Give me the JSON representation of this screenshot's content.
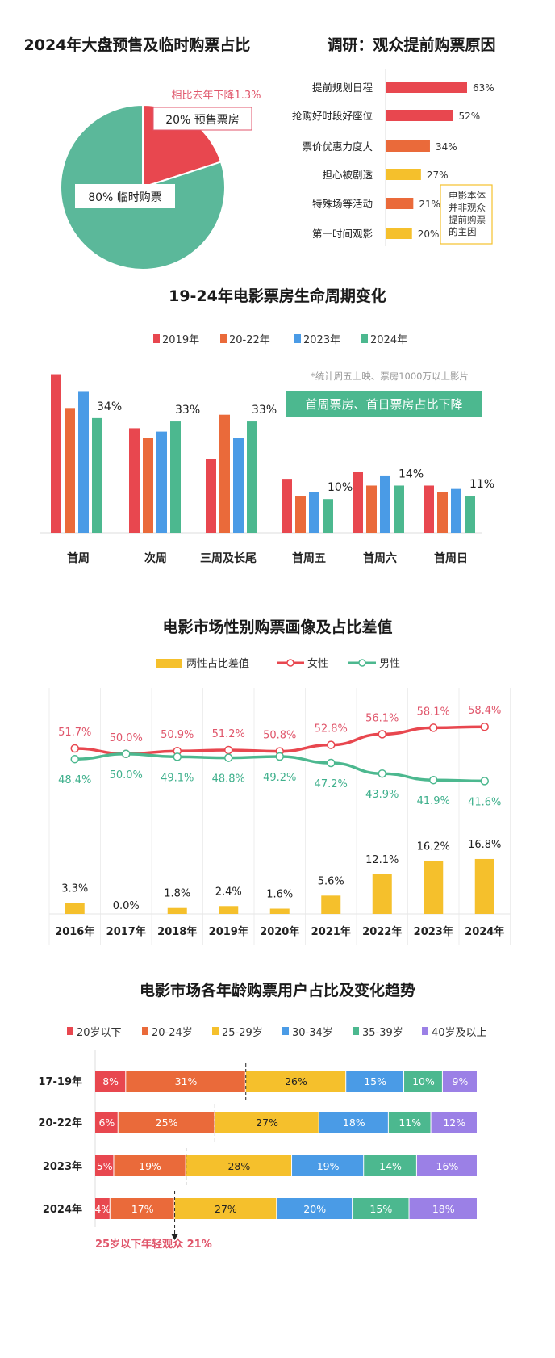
{
  "colors": {
    "red": "#e8474f",
    "orange": "#ea6a3a",
    "yellow": "#f5c02c",
    "blue": "#4a9be6",
    "green": "#4cb88f",
    "purple": "#9b80e6",
    "pink_text": "#e0566b",
    "pie_green": "#5bb89a"
  },
  "chart_data": [
    {
      "type": "pie",
      "title": "2024年大盘预售及临时购票占比",
      "slices": [
        {
          "label": "20% 预售票房",
          "value": 20,
          "color": "#e8474f"
        },
        {
          "label": "80% 临时购票",
          "value": 80,
          "color": "#5bb89a"
        }
      ],
      "annotation": "相比去年下降1.3%"
    },
    {
      "type": "bar",
      "orientation": "horizontal",
      "title": "调研：观众提前购票原因",
      "categories": [
        "提前规划日程",
        "抢购好时段好座位",
        "票价优惠力度大",
        "担心被剧透",
        "特殊场等活动",
        "第一时间观影"
      ],
      "values": [
        63,
        52,
        34,
        27,
        21,
        20
      ],
      "value_labels": [
        "63%",
        "52%",
        "34%",
        "27%",
        "21%",
        "20%"
      ],
      "bar_colors": [
        "#e8474f",
        "#e8474f",
        "#ea6a3a",
        "#f5c02c",
        "#ea6a3a",
        "#f5c02c"
      ],
      "note": [
        "电影本体",
        "并非观众",
        "提前购票",
        "的主因"
      ]
    },
    {
      "type": "bar",
      "title": "19-24年电影票房生命周期变化",
      "legend": [
        "2019年",
        "20-22年",
        "2023年",
        "2024年"
      ],
      "series_colors": [
        "#e8474f",
        "#ea6a3a",
        "#4a9be6",
        "#4cb88f"
      ],
      "groups": [
        {
          "categories": [
            "首周",
            "次周",
            "三周及长尾"
          ],
          "series": [
            {
              "name": "2019年",
              "values": [
                47,
                31,
                22
              ]
            },
            {
              "name": "20-22年",
              "values": [
                37,
                28,
                35
              ]
            },
            {
              "name": "2023年",
              "values": [
                42,
                30,
                28
              ]
            },
            {
              "name": "2024年",
              "values": [
                34,
                33,
                33
              ]
            }
          ],
          "labels": [
            "34%",
            "33%",
            "33%"
          ]
        },
        {
          "categories": [
            "首周五",
            "首周六",
            "首周日"
          ],
          "series": [
            {
              "name": "2019年",
              "values": [
                16,
                18,
                14
              ]
            },
            {
              "name": "20-22年",
              "values": [
                11,
                14,
                12
              ]
            },
            {
              "name": "2023年",
              "values": [
                12,
                17,
                13
              ]
            },
            {
              "name": "2024年",
              "values": [
                10,
                14,
                11
              ]
            }
          ],
          "labels": [
            "10%",
            "14%",
            "11%"
          ]
        }
      ],
      "note": "*统计周五上映、票房1000万以上影片",
      "callout": "首周票房、首日票房占比下降"
    },
    {
      "type": "line",
      "title": "电影市场性别购票画像及占比差值",
      "legend": [
        "两性占比差值",
        "女性",
        "男性"
      ],
      "categories": [
        "2016年",
        "2017年",
        "2018年",
        "2019年",
        "2020年",
        "2021年",
        "2022年",
        "2023年",
        "2024年"
      ],
      "series": [
        {
          "name": "女性",
          "type": "line",
          "values": [
            51.7,
            50.0,
            50.9,
            51.2,
            50.8,
            52.8,
            56.1,
            58.1,
            58.4
          ],
          "labels": [
            "51.7%",
            "50.0%",
            "50.9%",
            "51.2%",
            "50.8%",
            "52.8%",
            "56.1%",
            "58.1%",
            "58.4%"
          ],
          "color": "#e8474f"
        },
        {
          "name": "男性",
          "type": "line",
          "values": [
            48.4,
            50.0,
            49.1,
            48.8,
            49.2,
            47.2,
            43.9,
            41.9,
            41.6
          ],
          "labels": [
            "48.4%",
            "50.0%",
            "49.1%",
            "48.8%",
            "49.2%",
            "47.2%",
            "43.9%",
            "41.9%",
            "41.6%"
          ],
          "color": "#4cb88f"
        },
        {
          "name": "两性占比差值",
          "type": "bar",
          "values": [
            3.3,
            0.0,
            1.8,
            2.4,
            1.6,
            5.6,
            12.1,
            16.2,
            16.8
          ],
          "labels": [
            "3.3%",
            "0.0%",
            "1.8%",
            "2.4%",
            "1.6%",
            "5.6%",
            "12.1%",
            "16.2%",
            "16.8%"
          ],
          "color": "#f5c02c"
        }
      ]
    },
    {
      "type": "bar",
      "orientation": "horizontal-stacked",
      "title": "电影市场各年龄购票用户占比及变化趋势",
      "legend": [
        "20岁以下",
        "20-24岁",
        "25-29岁",
        "30-34岁",
        "35-39岁",
        "40岁及以上"
      ],
      "series_colors": [
        "#e8474f",
        "#ea6a3a",
        "#f5c02c",
        "#4a9be6",
        "#4cb88f",
        "#9b80e6"
      ],
      "categories": [
        "17-19年",
        "20-22年",
        "2023年",
        "2024年"
      ],
      "rows": [
        [
          8,
          31,
          26,
          15,
          10,
          9
        ],
        [
          6,
          25,
          27,
          18,
          11,
          12
        ],
        [
          5,
          19,
          28,
          19,
          14,
          16
        ],
        [
          4,
          17,
          27,
          20,
          15,
          18
        ]
      ],
      "annotation": "25岁以下年轻观众 21%"
    }
  ]
}
